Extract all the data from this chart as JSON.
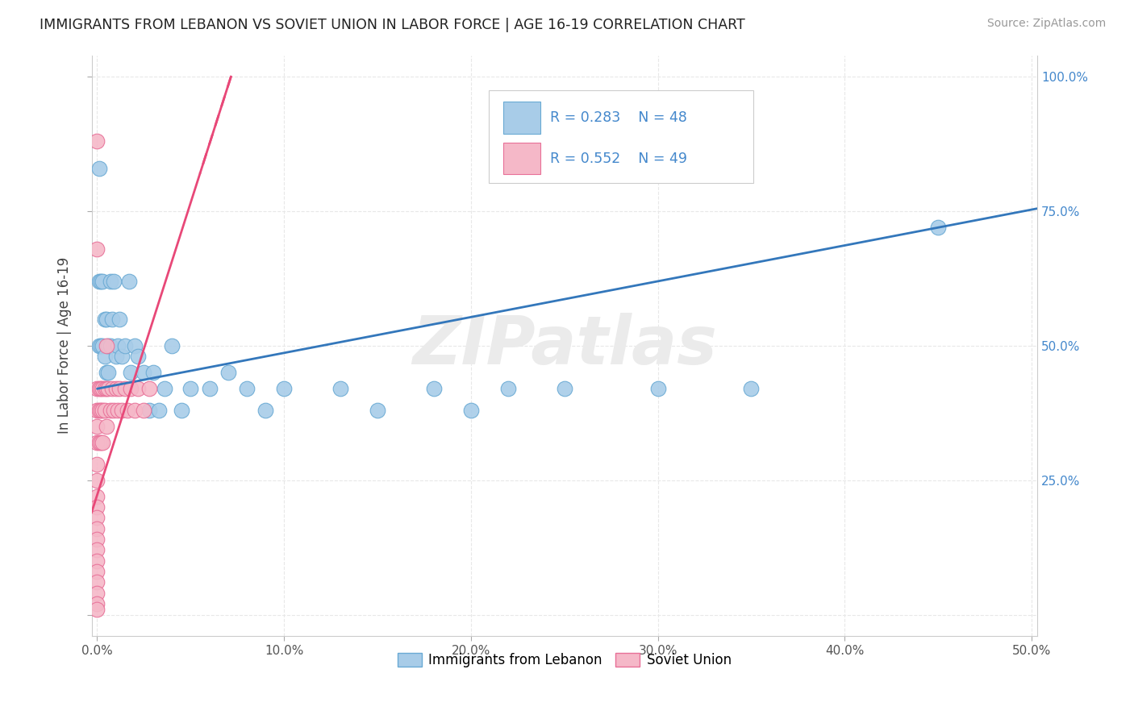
{
  "title": "IMMIGRANTS FROM LEBANON VS SOVIET UNION IN LABOR FORCE | AGE 16-19 CORRELATION CHART",
  "source": "Source: ZipAtlas.com",
  "ylabel": "In Labor Force | Age 16-19",
  "xlim": [
    -0.003,
    0.503
  ],
  "ylim": [
    -0.04,
    1.04
  ],
  "xticks": [
    0.0,
    0.1,
    0.2,
    0.3,
    0.4,
    0.5
  ],
  "xtick_labels": [
    "0.0%",
    "10.0%",
    "20.0%",
    "30.0%",
    "40.0%",
    "50.0%"
  ],
  "yticks": [
    0.0,
    0.25,
    0.5,
    0.75,
    1.0
  ],
  "right_ytick_labels": [
    "",
    "25.0%",
    "50.0%",
    "75.0%",
    "100.0%"
  ],
  "lebanon_color": "#a8cce8",
  "soviet_color": "#f5b8c8",
  "lebanon_edge": "#6aaad4",
  "soviet_edge": "#e87098",
  "trend_lebanon_color": "#3377bb",
  "trend_soviet_color": "#e84878",
  "legend_text_color": "#4488cc",
  "watermark_text": "ZIPatlas",
  "lebanon_x": [
    0.001,
    0.001,
    0.001,
    0.002,
    0.002,
    0.003,
    0.003,
    0.004,
    0.004,
    0.005,
    0.005,
    0.006,
    0.006,
    0.007,
    0.007,
    0.008,
    0.009,
    0.01,
    0.011,
    0.012,
    0.013,
    0.015,
    0.017,
    0.018,
    0.02,
    0.022,
    0.025,
    0.028,
    0.03,
    0.033,
    0.036,
    0.04,
    0.045,
    0.05,
    0.06,
    0.07,
    0.08,
    0.09,
    0.1,
    0.13,
    0.15,
    0.18,
    0.2,
    0.22,
    0.25,
    0.3,
    0.35,
    0.45
  ],
  "lebanon_y": [
    0.83,
    0.62,
    0.5,
    0.62,
    0.5,
    0.62,
    0.5,
    0.55,
    0.48,
    0.55,
    0.45,
    0.5,
    0.45,
    0.62,
    0.5,
    0.55,
    0.62,
    0.48,
    0.5,
    0.55,
    0.48,
    0.5,
    0.62,
    0.45,
    0.5,
    0.48,
    0.45,
    0.38,
    0.45,
    0.38,
    0.42,
    0.5,
    0.38,
    0.42,
    0.42,
    0.45,
    0.42,
    0.38,
    0.42,
    0.42,
    0.38,
    0.42,
    0.38,
    0.42,
    0.42,
    0.42,
    0.42,
    0.72
  ],
  "soviet_x": [
    0.0,
    0.0,
    0.0,
    0.0,
    0.0,
    0.0,
    0.0,
    0.0,
    0.0,
    0.0,
    0.0,
    0.0,
    0.0,
    0.0,
    0.0,
    0.0,
    0.0,
    0.0,
    0.0,
    0.0,
    0.001,
    0.001,
    0.001,
    0.002,
    0.002,
    0.002,
    0.003,
    0.003,
    0.003,
    0.004,
    0.004,
    0.005,
    0.005,
    0.005,
    0.006,
    0.007,
    0.008,
    0.009,
    0.01,
    0.011,
    0.012,
    0.013,
    0.015,
    0.016,
    0.018,
    0.02,
    0.022,
    0.025,
    0.028
  ],
  "soviet_y": [
    0.88,
    0.68,
    0.42,
    0.38,
    0.35,
    0.32,
    0.28,
    0.25,
    0.22,
    0.2,
    0.18,
    0.16,
    0.14,
    0.12,
    0.1,
    0.08,
    0.06,
    0.04,
    0.02,
    0.01,
    0.42,
    0.38,
    0.32,
    0.42,
    0.38,
    0.32,
    0.42,
    0.38,
    0.32,
    0.42,
    0.38,
    0.5,
    0.42,
    0.35,
    0.42,
    0.38,
    0.42,
    0.38,
    0.42,
    0.38,
    0.42,
    0.38,
    0.42,
    0.38,
    0.42,
    0.38,
    0.42,
    0.38,
    0.42
  ],
  "leb_trend_x0": 0.0,
  "leb_trend_x1": 0.503,
  "leb_trend_y0": 0.42,
  "leb_trend_y1": 0.755,
  "sov_trend_x0": -0.003,
  "sov_trend_x1": 0.055,
  "sov_trend_y0": 0.19,
  "sov_trend_y1": 0.82,
  "background_color": "#ffffff",
  "grid_color": "#e8e8e8",
  "title_fontsize": 12.5,
  "source_fontsize": 10,
  "tick_fontsize": 11
}
